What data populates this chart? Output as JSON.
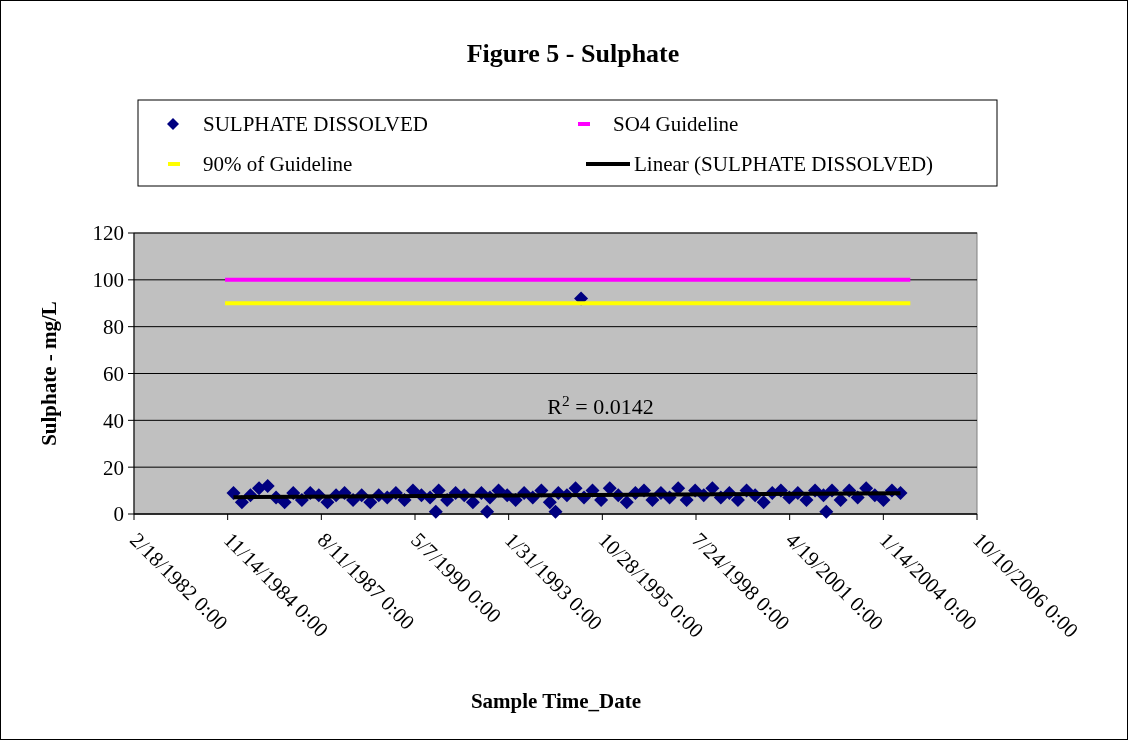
{
  "chart_data": {
    "type": "scatter",
    "title": "Figure 5 - Sulphate",
    "xlabel": "Sample Time_Date",
    "ylabel": "Sulphate - mg/L",
    "xlim": [
      "1982-02-18",
      "2006-10-10"
    ],
    "xticks": [
      {
        "value": "1982-02-18",
        "label": "2/18/1982 0:00"
      },
      {
        "value": "1984-11-14",
        "label": "11/14/1984 0:00"
      },
      {
        "value": "1987-08-11",
        "label": "8/11/1987 0:00"
      },
      {
        "value": "1990-05-07",
        "label": "5/7/1990 0:00"
      },
      {
        "value": "1993-01-31",
        "label": "1/31/1993 0:00"
      },
      {
        "value": "1995-10-28",
        "label": "10/28/1995 0:00"
      },
      {
        "value": "1998-07-24",
        "label": "7/24/1998 0:00"
      },
      {
        "value": "2001-04-19",
        "label": "4/19/2001 0:00"
      },
      {
        "value": "2004-01-14",
        "label": "1/14/2004 0:00"
      },
      {
        "value": "2006-10-10",
        "label": "10/10/2006 0:00"
      }
    ],
    "ylim": [
      0,
      120
    ],
    "yticks": [
      0,
      20,
      40,
      60,
      80,
      100,
      120
    ],
    "grid": "y",
    "legend": "top",
    "annotations": [
      "R$^{2}$ = 0.0142"
    ],
    "series": [
      {
        "name": "SULPHATE DISSOLVED",
        "marker": "diamond",
        "color": "#000080",
        "x": [
          "1985-01-15",
          "1985-04-15",
          "1985-07-15",
          "1985-10-15",
          "1986-01-15",
          "1986-04-15",
          "1986-07-15",
          "1986-10-15",
          "1987-01-15",
          "1987-04-15",
          "1987-07-15",
          "1987-10-15",
          "1988-01-15",
          "1988-04-15",
          "1988-07-15",
          "1988-10-15",
          "1989-01-15",
          "1989-04-15",
          "1989-07-15",
          "1989-10-15",
          "1990-01-15",
          "1990-04-15",
          "1990-07-15",
          "1990-10-15",
          "1990-12-15",
          "1991-01-15",
          "1991-04-15",
          "1991-07-15",
          "1991-10-15",
          "1992-01-15",
          "1992-04-15",
          "1992-06-15",
          "1992-07-15",
          "1992-10-15",
          "1993-01-15",
          "1993-04-15",
          "1993-07-15",
          "1993-10-15",
          "1994-01-15",
          "1994-04-15",
          "1994-06-15",
          "1994-07-15",
          "1994-10-15",
          "1995-01-15",
          "1995-03-15",
          "1995-04-15",
          "1995-07-15",
          "1995-10-15",
          "1996-01-15",
          "1996-04-15",
          "1996-07-15",
          "1996-10-15",
          "1997-01-15",
          "1997-04-15",
          "1997-07-15",
          "1997-10-15",
          "1998-01-15",
          "1998-04-15",
          "1998-07-15",
          "1998-10-15",
          "1999-01-15",
          "1999-04-15",
          "1999-07-15",
          "1999-10-15",
          "2000-01-15",
          "2000-04-15",
          "2000-07-15",
          "2000-10-15",
          "2001-01-15",
          "2001-04-15",
          "2001-07-15",
          "2001-10-15",
          "2002-01-15",
          "2002-04-15",
          "2002-05-15",
          "2002-07-15",
          "2002-10-15",
          "2003-01-15",
          "2003-04-15",
          "2003-07-15",
          "2003-10-15",
          "2004-01-15",
          "2004-04-15",
          "2004-07-15"
        ],
        "values": [
          9,
          5,
          8,
          11,
          12,
          7,
          5,
          9,
          6,
          9,
          8,
          5,
          8,
          9,
          6,
          8,
          5,
          8,
          7,
          9,
          6,
          10,
          8,
          7,
          1,
          10,
          6,
          9,
          8,
          5,
          9,
          1,
          7,
          10,
          8,
          6,
          9,
          7,
          10,
          5,
          1,
          9,
          8,
          11,
          92,
          7,
          10,
          6,
          11,
          8,
          5,
          9,
          10,
          6,
          9,
          7,
          11,
          6,
          10,
          8,
          11,
          7,
          9,
          6,
          10,
          8,
          5,
          9,
          10,
          7,
          9,
          6,
          10,
          8,
          1,
          10,
          6,
          10,
          7,
          11,
          8,
          6,
          10,
          9
        ]
      },
      {
        "name": "SO4 Guideline",
        "type": "line",
        "color": "#ff00ff",
        "x": [
          "1984-10-17",
          "2004-10-28"
        ],
        "values": [
          100,
          100
        ]
      },
      {
        "name": "90% of Guideline",
        "type": "line",
        "color": "#ffff00",
        "x": [
          "1984-10-17",
          "2004-10-28"
        ],
        "values": [
          90,
          90
        ]
      },
      {
        "name": "Linear (SULPHATE DISSOLVED)",
        "type": "line",
        "color": "#000000",
        "x": [
          "1985-01-15",
          "2004-07-15"
        ],
        "values": [
          7.2,
          8.9
        ]
      }
    ]
  }
}
